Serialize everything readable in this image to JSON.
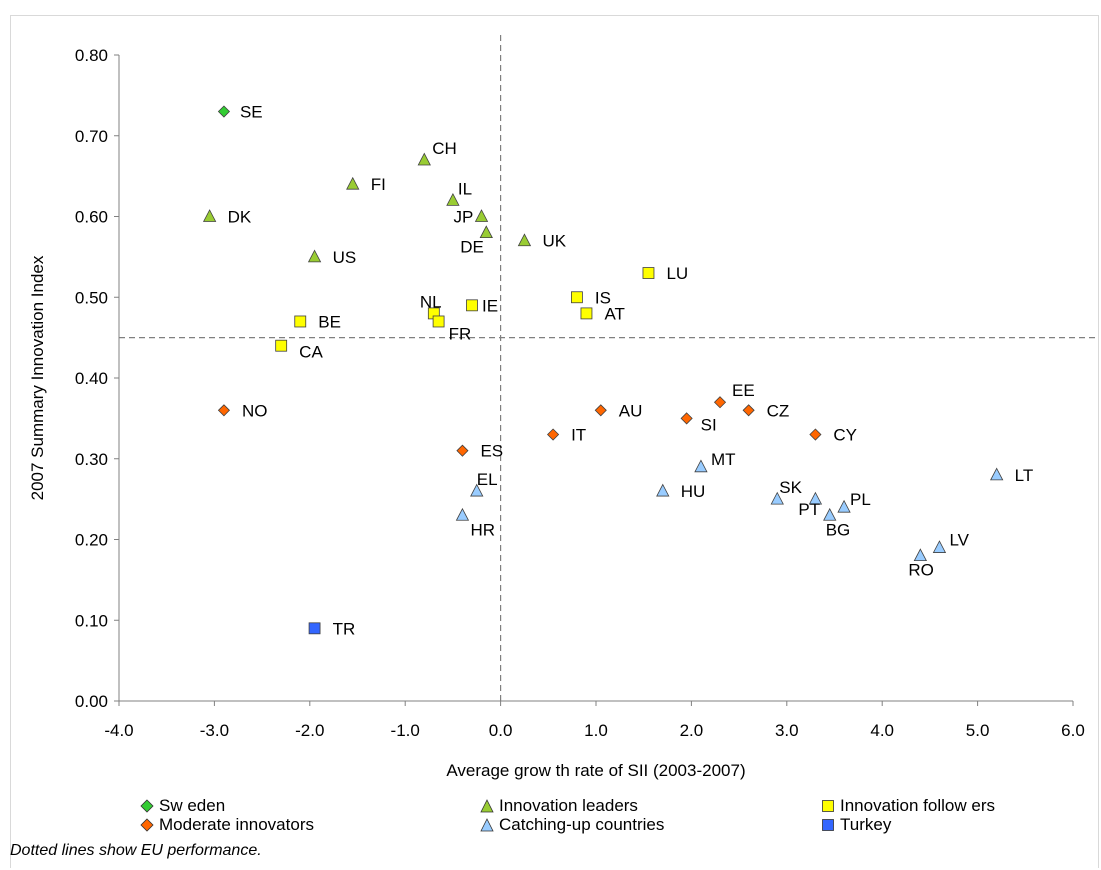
{
  "chart_data": {
    "type": "scatter",
    "xlabel": "Average grow th rate of SII (2003-2007)",
    "ylabel": "2007 Summary Innovation Index",
    "xlim": [
      -4.0,
      6.0
    ],
    "ylim": [
      0.0,
      0.8
    ],
    "x_ticks": [
      "-4.0",
      "-3.0",
      "-2.0",
      "-1.0",
      "0.0",
      "1.0",
      "2.0",
      "3.0",
      "4.0",
      "5.0",
      "6.0"
    ],
    "y_ticks": [
      "0.00",
      "0.10",
      "0.20",
      "0.30",
      "0.40",
      "0.50",
      "0.60",
      "0.70",
      "0.80"
    ],
    "grid": false,
    "reference_lines": {
      "x": 0.0,
      "y": 0.45,
      "style": "dashed"
    },
    "legend_position": "bottom",
    "series": [
      {
        "name": "Sw eden",
        "marker": "diamond",
        "color": "#33cc33",
        "points": [
          {
            "label": "SE",
            "x": -2.9,
            "y": 0.73
          }
        ]
      },
      {
        "name": "Innovation leaders",
        "marker": "triangle",
        "color": "#99cc33",
        "points": [
          {
            "label": "CH",
            "x": -0.8,
            "y": 0.67
          },
          {
            "label": "FI",
            "x": -1.55,
            "y": 0.64
          },
          {
            "label": "IL",
            "x": -0.5,
            "y": 0.62
          },
          {
            "label": "DK",
            "x": -3.05,
            "y": 0.6
          },
          {
            "label": "JP",
            "x": -0.2,
            "y": 0.6
          },
          {
            "label": "DE",
            "x": -0.15,
            "y": 0.58
          },
          {
            "label": "UK",
            "x": 0.25,
            "y": 0.57
          },
          {
            "label": "US",
            "x": -1.95,
            "y": 0.55
          }
        ]
      },
      {
        "name": "Innovation follow ers",
        "marker": "square",
        "color": "#ffff00",
        "points": [
          {
            "label": "LU",
            "x": 1.55,
            "y": 0.53
          },
          {
            "label": "IS",
            "x": 0.8,
            "y": 0.5
          },
          {
            "label": "AT",
            "x": 0.9,
            "y": 0.48
          },
          {
            "label": "IE",
            "x": -0.3,
            "y": 0.49
          },
          {
            "label": "NL",
            "x": -0.7,
            "y": 0.48
          },
          {
            "label": "FR",
            "x": -0.65,
            "y": 0.47
          },
          {
            "label": "BE",
            "x": -2.1,
            "y": 0.47
          },
          {
            "label": "CA",
            "x": -2.3,
            "y": 0.44
          }
        ]
      },
      {
        "name": "Moderate innovators",
        "marker": "diamond",
        "color": "#ff6600",
        "points": [
          {
            "label": "NO",
            "x": -2.9,
            "y": 0.36
          },
          {
            "label": "AU",
            "x": 1.05,
            "y": 0.36
          },
          {
            "label": "EE",
            "x": 2.3,
            "y": 0.37
          },
          {
            "label": "SI",
            "x": 1.95,
            "y": 0.35
          },
          {
            "label": "CZ",
            "x": 2.6,
            "y": 0.36
          },
          {
            "label": "IT",
            "x": 0.55,
            "y": 0.33
          },
          {
            "label": "CY",
            "x": 3.3,
            "y": 0.33
          },
          {
            "label": "ES",
            "x": -0.4,
            "y": 0.31
          }
        ]
      },
      {
        "name": "Catching-up countries",
        "marker": "triangle",
        "color": "#99ccff",
        "points": [
          {
            "label": "MT",
            "x": 2.1,
            "y": 0.29
          },
          {
            "label": "LT",
            "x": 5.2,
            "y": 0.28
          },
          {
            "label": "EL",
            "x": -0.25,
            "y": 0.26
          },
          {
            "label": "HU",
            "x": 1.7,
            "y": 0.26
          },
          {
            "label": "SK",
            "x": 2.9,
            "y": 0.25
          },
          {
            "label": "PT",
            "x": 3.3,
            "y": 0.25
          },
          {
            "label": "PL",
            "x": 3.6,
            "y": 0.24
          },
          {
            "label": "BG",
            "x": 3.45,
            "y": 0.23
          },
          {
            "label": "HR",
            "x": -0.4,
            "y": 0.23
          },
          {
            "label": "LV",
            "x": 4.6,
            "y": 0.19
          },
          {
            "label": "RO",
            "x": 4.4,
            "y": 0.18
          }
        ]
      },
      {
        "name": "Turkey",
        "marker": "square",
        "color": "#3366ff",
        "points": [
          {
            "label": "TR",
            "x": -1.95,
            "y": 0.09
          }
        ]
      }
    ]
  },
  "footnote": "Dotted lines show EU performance."
}
